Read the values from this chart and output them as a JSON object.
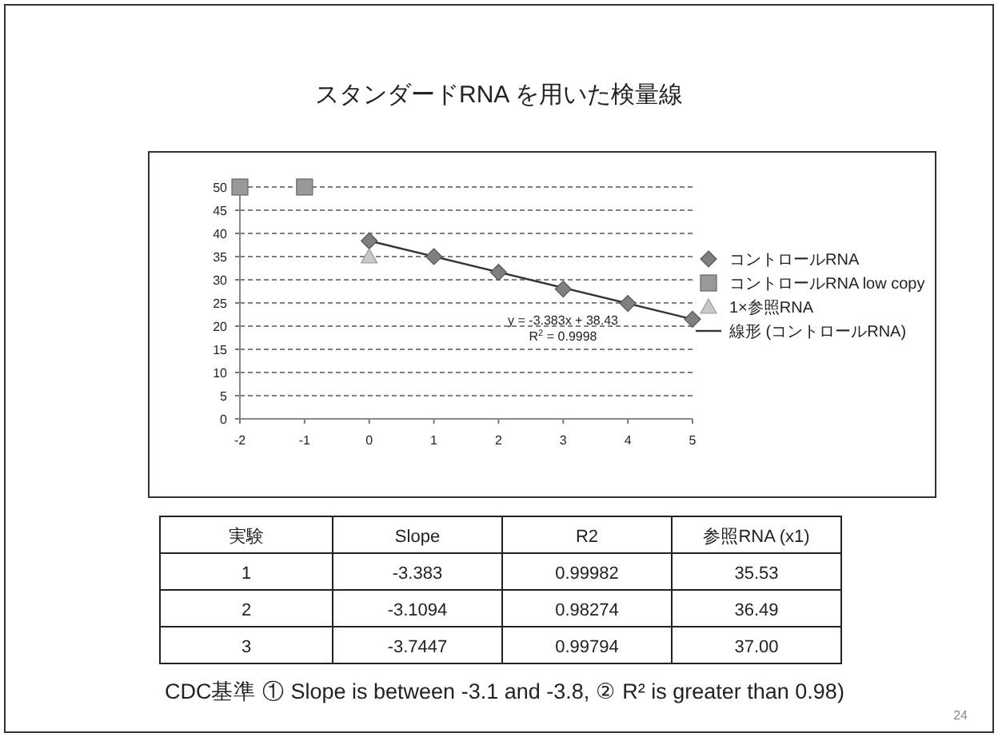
{
  "chart_data": [
    {
      "type": "scatter",
      "title": "スタンダードRNA を用いた検量線",
      "xlim": [
        -2,
        5
      ],
      "xticks": [
        -2,
        -1,
        0,
        1,
        2,
        3,
        4,
        5
      ],
      "ylim": [
        0,
        50
      ],
      "yticks": [
        0,
        5,
        10,
        15,
        20,
        25,
        30,
        35,
        40,
        45,
        50
      ],
      "grid": "y",
      "legend": "right",
      "series": [
        {
          "name": "コントロールRNA",
          "color": "#7f7f7f",
          "marker": "diamond",
          "x": [
            0,
            1,
            2,
            3,
            4,
            5
          ],
          "values": [
            38.4,
            35,
            31.6,
            28,
            24.9,
            21.5
          ]
        },
        {
          "name": "コントロールRNA low copy",
          "color": "#999999",
          "marker": "square",
          "x": [
            -2,
            -1
          ],
          "values": [
            50,
            50
          ]
        },
        {
          "name": "1×参照RNA",
          "color": "#c8c8c8",
          "marker": "triangle",
          "x": [
            0
          ],
          "values": [
            35
          ]
        },
        {
          "name": "線形 (コントロールRNA)",
          "type": "line",
          "color": "#333333",
          "marker": "none",
          "x": [
            0,
            5
          ],
          "values": [
            38.4,
            21.5
          ]
        }
      ],
      "annotations": [
        "y = -3.383x + 38.43",
        "R$^{2}$ = 0.9998",
        "CDC基準 ① Slope is between -3.1 and -3.8, ② R² is greater than 0.98)",
        "24"
      ]
    },
    {
      "type": "other",
      "categories": [
        "実験",
        "Slope",
        "R2",
        "参照RNA (x1)"
      ],
      "annotations": [
        "1",
        "-3.383",
        "0.99982",
        "35.53",
        "2",
        "-3.1094",
        "0.98274",
        "36.49",
        "3",
        "-3.7447",
        "0.99794",
        "37.00"
      ]
    }
  ]
}
